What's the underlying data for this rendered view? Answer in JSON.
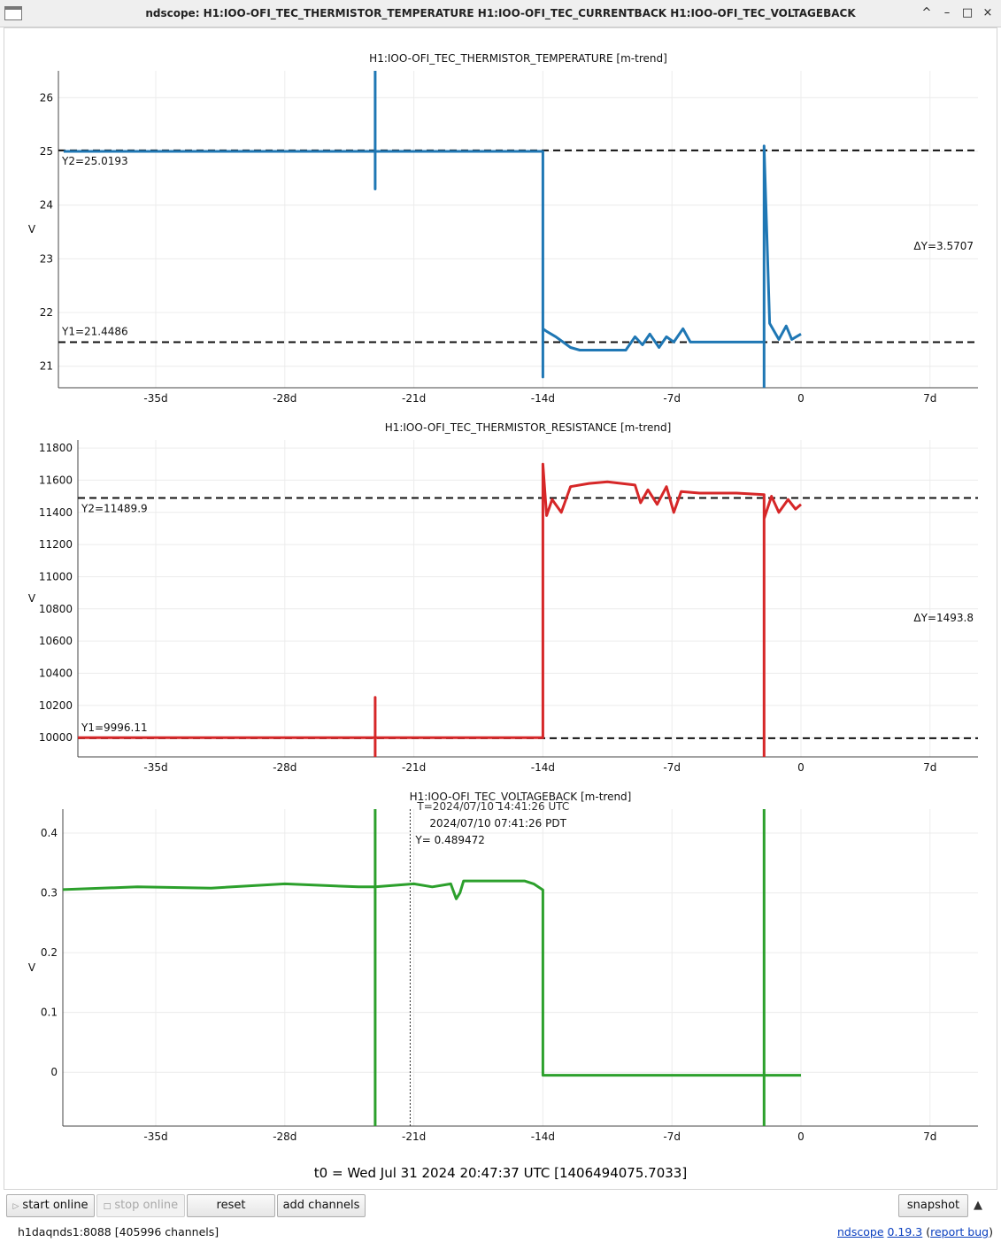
{
  "window": {
    "title": "ndscope: H1:IOO-OFI_TEC_THERMISTOR_TEMPERATURE H1:IOO-OFI_TEC_CURRENTBACK H1:IOO-OFI_TEC_VOLTAGEBACK",
    "controls": {
      "minimize": "–",
      "maximize": "□",
      "close": "×",
      "shade": "^"
    }
  },
  "plots": [
    {
      "title": "H1:IOO-OFI_TEC_THERMISTOR_TEMPERATURE [m-trend]",
      "ylabel": "V",
      "color": "#1f77b4",
      "y_ticks": [
        "26",
        "25",
        "24",
        "23",
        "22",
        "21"
      ],
      "x_ticks": [
        "-35d",
        "-28d",
        "-21d",
        "-14d",
        "-7d",
        "0",
        "7d"
      ],
      "cursor_y2": "Y2=25.0193",
      "cursor_y1": "Y1=21.4486",
      "delta": "ΔY=3.5707"
    },
    {
      "title": "H1:IOO-OFI_TEC_THERMISTOR_RESISTANCE [m-trend]",
      "ylabel": "V",
      "color": "#d62728",
      "y_ticks": [
        "11800",
        "11600",
        "11400",
        "11200",
        "11000",
        "10800",
        "10600",
        "10400",
        "10200",
        "10000"
      ],
      "x_ticks": [
        "-35d",
        "-28d",
        "-21d",
        "-14d",
        "-7d",
        "0",
        "7d"
      ],
      "cursor_y2": "Y2=11489.9",
      "cursor_y1": "Y1=9996.11",
      "delta": "ΔY=1493.8"
    },
    {
      "title": "H1:IOO-OFI_TEC_VOLTAGEBACK [m-trend]",
      "ylabel": "V",
      "color": "#2ca02c",
      "y_ticks": [
        "0.4",
        "0.3",
        "0.2",
        "0.1",
        "0"
      ],
      "x_ticks": [
        "-35d",
        "-28d",
        "-21d",
        "-14d",
        "-7d",
        "0",
        "7d"
      ],
      "cursor_t_utc": "T=2024/07/10 14:41:26 UTC",
      "cursor_t_local": "2024/07/10 07:41:26 PDT",
      "cursor_y": "Y= 0.489472"
    }
  ],
  "chart_data": [
    {
      "type": "line",
      "title": "H1:IOO-OFI_TEC_THERMISTOR_TEMPERATURE [m-trend]",
      "xlabel": "",
      "ylabel": "V",
      "x_unit": "days",
      "xlim": [
        -40,
        10
      ],
      "ylim": [
        20.6,
        26.5
      ],
      "series": [
        {
          "x": [
            -40,
            -23.1,
            -23.1,
            -23.1,
            -23.1,
            -14,
            -14,
            -14,
            -13.8,
            -13.3,
            -12.5,
            -12,
            -10.5,
            -9.5,
            -9,
            -8.6,
            -8.2,
            -7.7,
            -7.3,
            -6.9,
            -6.4,
            -6,
            -5,
            -3.5,
            -2,
            -2,
            -2,
            -1.7,
            -1.2,
            -0.8,
            -0.5,
            0
          ],
          "y": [
            25,
            25,
            26.5,
            24.3,
            25,
            25,
            20.8,
            21.7,
            21.65,
            21.55,
            21.35,
            21.3,
            21.3,
            21.3,
            21.55,
            21.4,
            21.6,
            21.35,
            21.55,
            21.45,
            21.7,
            21.45,
            21.45,
            21.45,
            21.45,
            20.6,
            25.1,
            21.8,
            21.5,
            21.75,
            21.5,
            21.6
          ]
        }
      ],
      "hlines": [
        25.0193,
        21.4486
      ]
    },
    {
      "type": "line",
      "title": "H1:IOO-OFI_TEC_THERMISTOR_RESISTANCE [m-trend]",
      "xlabel": "",
      "ylabel": "V",
      "x_unit": "days",
      "xlim": [
        -41,
        8
      ],
      "ylim": [
        9880,
        11850
      ],
      "series": [
        {
          "x": [
            -41,
            -23.1,
            -23.1,
            -23.1,
            -23.1,
            -14,
            -14,
            -13.8,
            -13.5,
            -13,
            -12.5,
            -11.5,
            -10.5,
            -9,
            -8.7,
            -8.3,
            -7.8,
            -7.3,
            -6.9,
            -6.5,
            -5.5,
            -3.5,
            -2,
            -2,
            -2,
            -1.6,
            -1.2,
            -0.7,
            -0.3,
            0
          ],
          "y": [
            10000,
            10000,
            10250,
            9880,
            10000,
            10000,
            11700,
            11380,
            11480,
            11400,
            11560,
            11580,
            11590,
            11570,
            11460,
            11540,
            11450,
            11560,
            11400,
            11530,
            11520,
            11520,
            11510,
            9880,
            11360,
            11500,
            11400,
            11480,
            11420,
            11450
          ]
        }
      ],
      "hlines": [
        11489.9,
        9996.11
      ]
    },
    {
      "type": "line",
      "title": "H1:IOO-OFI_TEC_VOLTAGEBACK [m-trend]",
      "xlabel": "",
      "ylabel": "V",
      "x_unit": "days",
      "xlim": [
        -40.5,
        9.5
      ],
      "ylim": [
        -0.09,
        0.44
      ],
      "series": [
        {
          "x": [
            -40.5,
            -36,
            -32,
            -28,
            -24,
            -23.1,
            -23.1,
            -23.1,
            -23.1,
            -21,
            -20,
            -19,
            -18.7,
            -18.5,
            -18.3,
            -17,
            -15,
            -14.5,
            -14,
            -14,
            -2,
            -2,
            -2,
            -2,
            0
          ],
          "y": [
            0.305,
            0.31,
            0.308,
            0.315,
            0.31,
            0.31,
            0.44,
            -0.09,
            0.31,
            0.315,
            0.31,
            0.315,
            0.29,
            0.3,
            0.32,
            0.32,
            0.32,
            0.315,
            0.305,
            -0.005,
            -0.005,
            -0.09,
            0.44,
            -0.005,
            -0.005
          ]
        }
      ],
      "vlines": [
        -21.2
      ]
    }
  ],
  "footer": {
    "t0": "t0 = Wed Jul 31 2024 20:47:37 UTC [1406494075.7033]"
  },
  "toolbar": {
    "start_online": "start online",
    "stop_online": "stop online",
    "reset": "reset",
    "add_channels": "add channels",
    "snapshot": "snapshot",
    "expand": "▲"
  },
  "status": {
    "server": "h1daqnds1:8088  [405996 channels]",
    "app_name": "ndscope",
    "version": "0.19.3",
    "report_bug": "report bug"
  }
}
